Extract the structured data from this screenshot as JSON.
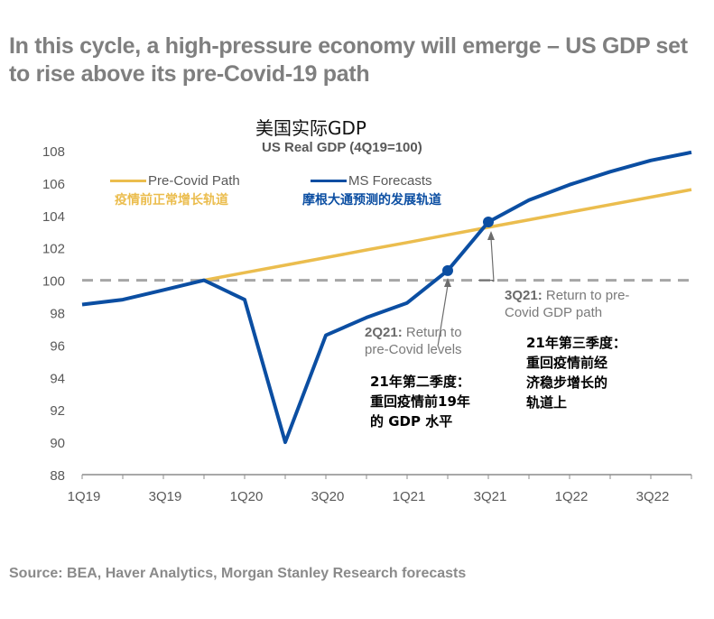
{
  "headline": "In this cycle, a high-pressure economy will emerge – US GDP set to rise above its pre-Covid-19 path",
  "source": "Source: BEA, Haver Analytics, Morgan Stanley Research forecasts",
  "colors": {
    "pre_covid": "#ebbd4e",
    "ms_forecast": "#0b4ea2",
    "baseline": "#a6a6a6",
    "axis": "#8c8c8c"
  },
  "chart_data": {
    "type": "line",
    "title_cn": "美国实际GDP",
    "title": "US Real GDP (4Q19=100)",
    "xlabel": "",
    "ylabel": "",
    "ylim": [
      88,
      108
    ],
    "yticks": [
      88,
      90,
      92,
      94,
      96,
      98,
      100,
      102,
      104,
      106,
      108
    ],
    "x": [
      "1Q19",
      "2Q19",
      "3Q19",
      "4Q19",
      "1Q20",
      "2Q20",
      "3Q20",
      "4Q20",
      "1Q21",
      "2Q21",
      "3Q21",
      "4Q21",
      "1Q22",
      "2Q22",
      "3Q22",
      "4Q22"
    ],
    "xtick_labels": [
      "1Q19",
      "3Q19",
      "1Q20",
      "3Q20",
      "1Q21",
      "3Q21",
      "1Q22",
      "3Q22"
    ],
    "grid": false,
    "reference_line": {
      "value": 100,
      "style": "dashed"
    },
    "legend_position": "top-left",
    "series": [
      {
        "name": "Pre-Covid Path",
        "name_cn": "疫情前正常增长轨道",
        "values": [
          null,
          null,
          null,
          100.0,
          100.47,
          100.93,
          101.4,
          101.87,
          102.33,
          102.8,
          103.27,
          103.73,
          104.2,
          104.67,
          105.13,
          105.6
        ]
      },
      {
        "name": "MS Forecasts",
        "name_cn": "摩根大通预测的发展轨道",
        "values": [
          98.5,
          98.8,
          99.4,
          100.0,
          98.8,
          90.0,
          96.6,
          97.7,
          98.6,
          100.6,
          103.6,
          104.95,
          105.9,
          106.7,
          107.4,
          107.9
        ]
      }
    ],
    "annotations": [
      {
        "x": "2Q21",
        "label_bold": "2Q21:",
        "label_rest": " Return to",
        "label_line2": "pre-Covid levels",
        "cn": [
          "21年第二季度：",
          "重回疫情前19年",
          "的 GDP 水平"
        ]
      },
      {
        "x": "3Q21",
        "label_bold": "3Q21:",
        "label_rest": " Return to pre-",
        "label_line2": "Covid GDP path",
        "cn": [
          "21年第三季度：",
          "重回疫情前经",
          "济稳步增长的",
          "轨道上"
        ]
      }
    ]
  }
}
